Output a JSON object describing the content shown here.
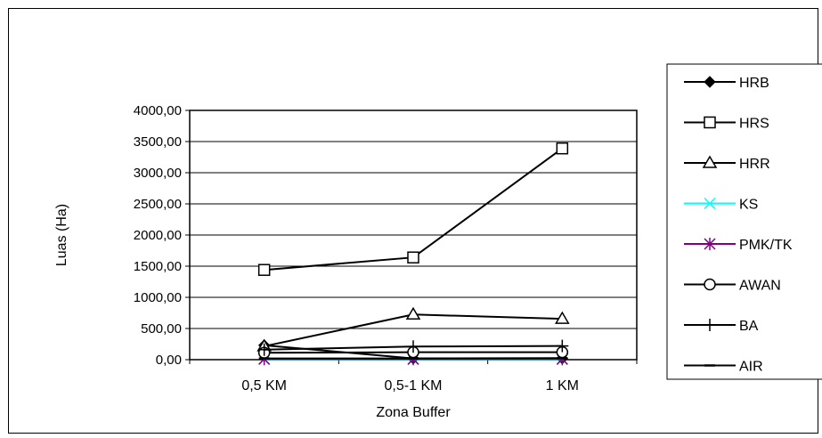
{
  "chart_data": {
    "type": "line",
    "title": "",
    "xlabel": "Zona Buffer",
    "ylabel": "Luas (Ha)",
    "categories": [
      "0,5 KM",
      "0,5-1 KM",
      "1 KM"
    ],
    "ylim": [
      0,
      4000
    ],
    "yticks": [
      0,
      500,
      1000,
      1500,
      2000,
      2500,
      3000,
      3500,
      4000
    ],
    "ytick_labels": [
      "0,00",
      "500,00",
      "1000,00",
      "1500,00",
      "2000,00",
      "2500,00",
      "3000,00",
      "3500,00",
      "4000,00"
    ],
    "grid": true,
    "legend_position": "right",
    "series": [
      {
        "name": "HRB",
        "marker": "diamond-filled",
        "color": "#000000",
        "values": [
          230,
          20,
          20
        ]
      },
      {
        "name": "HRS",
        "marker": "square-open",
        "color": "#000000",
        "values": [
          1440,
          1640,
          3390
        ]
      },
      {
        "name": "HRR",
        "marker": "triangle-open",
        "color": "#000000",
        "values": [
          215,
          725,
          655
        ]
      },
      {
        "name": "KS",
        "marker": "x",
        "color": "#00ffff",
        "values": [
          5,
          5,
          5
        ]
      },
      {
        "name": "PMK/TK",
        "marker": "asterisk",
        "color": "#800080",
        "values": [
          10,
          10,
          10
        ]
      },
      {
        "name": "AWAN",
        "marker": "circle-open",
        "color": "#000000",
        "values": [
          110,
          120,
          120
        ]
      },
      {
        "name": "BA",
        "marker": "plus",
        "color": "#000000",
        "values": [
          160,
          210,
          220
        ]
      },
      {
        "name": "AIR",
        "marker": "dash",
        "color": "#000000",
        "values": [
          20,
          20,
          25
        ]
      }
    ]
  }
}
